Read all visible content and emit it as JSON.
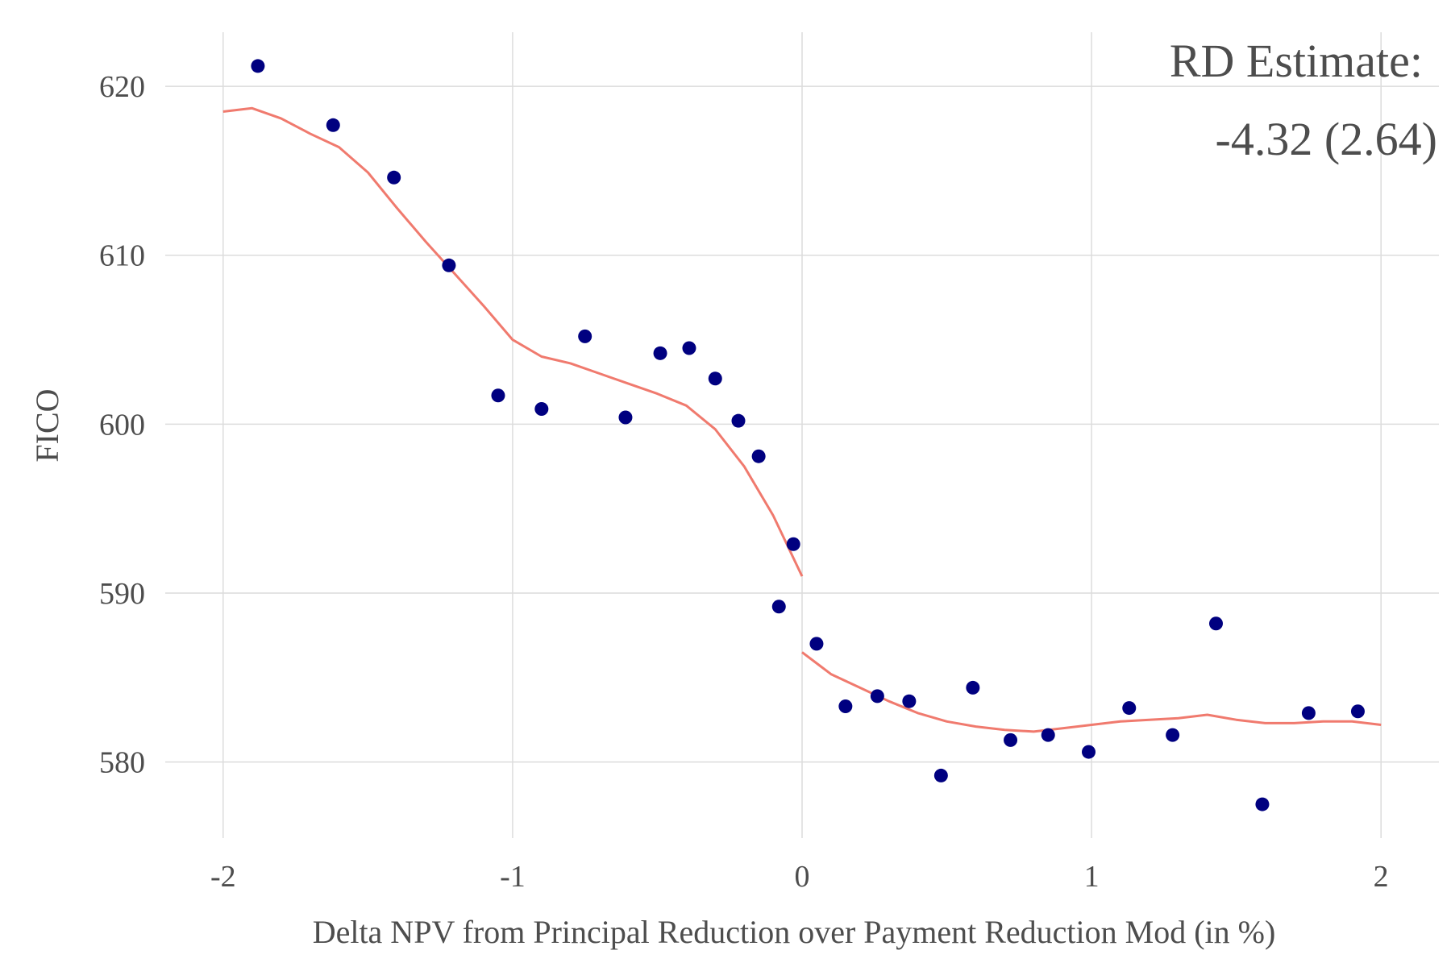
{
  "chart_data": {
    "type": "scatter",
    "xlabel": "Delta NPV from Principal Reduction over Payment Reduction Mod (in %)",
    "ylabel": "FICO",
    "xlim": [
      -2.2,
      2.2
    ],
    "ylim": [
      575.5,
      623.2
    ],
    "x_ticks": [
      -2,
      -1,
      0,
      1,
      2
    ],
    "x_tick_labels": [
      "-2",
      "-1",
      "0",
      "1",
      "2"
    ],
    "y_ticks": [
      580,
      590,
      600,
      610,
      620
    ],
    "y_tick_labels": [
      "580",
      "590",
      "600",
      "610",
      "620"
    ],
    "grid": true,
    "annotation": {
      "line1": "RD Estimate:",
      "line2": "-4.32 (2.64)",
      "position": "top-right"
    },
    "colors": {
      "points": "#000080",
      "fit": "#f07a6e",
      "grid": "#dcdcdc",
      "text": "#4d4d4d"
    },
    "points": {
      "x": [
        -1.88,
        -1.62,
        -1.41,
        -1.22,
        -1.05,
        -0.9,
        -0.75,
        -0.61,
        -0.49,
        -0.39,
        -0.3,
        -0.22,
        -0.15,
        -0.08,
        -0.03,
        0.05,
        0.15,
        0.26,
        0.37,
        0.48,
        0.59,
        0.72,
        0.85,
        0.99,
        1.13,
        1.28,
        1.43,
        1.59,
        1.75,
        1.92
      ],
      "y": [
        621.2,
        617.7,
        614.6,
        609.4,
        601.7,
        600.9,
        605.2,
        600.4,
        604.2,
        604.5,
        602.7,
        600.2,
        598.1,
        589.2,
        592.9,
        587.0,
        583.3,
        583.9,
        583.6,
        579.2,
        584.4,
        581.3,
        581.6,
        580.6,
        583.2,
        581.6,
        588.2,
        577.5,
        582.9,
        583.0
      ]
    },
    "fit_left": {
      "x": [
        -2.0,
        -1.9,
        -1.8,
        -1.7,
        -1.6,
        -1.5,
        -1.4,
        -1.3,
        -1.2,
        -1.1,
        -1.0,
        -0.9,
        -0.8,
        -0.7,
        -0.6,
        -0.5,
        -0.4,
        -0.3,
        -0.2,
        -0.1,
        0.0
      ],
      "y": [
        618.5,
        618.7,
        618.1,
        617.2,
        616.4,
        614.9,
        612.8,
        610.8,
        608.9,
        607.0,
        605.0,
        604.0,
        603.6,
        603.0,
        602.4,
        601.8,
        601.1,
        599.7,
        597.5,
        594.6,
        591.0
      ]
    },
    "fit_right": {
      "x": [
        0.0,
        0.1,
        0.2,
        0.3,
        0.4,
        0.5,
        0.6,
        0.7,
        0.8,
        0.9,
        1.0,
        1.1,
        1.2,
        1.3,
        1.4,
        1.5,
        1.6,
        1.7,
        1.8,
        1.9,
        2.0
      ],
      "y": [
        586.5,
        585.2,
        584.4,
        583.6,
        582.9,
        582.4,
        582.1,
        581.9,
        581.8,
        582.0,
        582.2,
        582.4,
        582.5,
        582.6,
        582.8,
        582.5,
        582.3,
        582.3,
        582.4,
        582.4,
        582.2
      ]
    }
  }
}
